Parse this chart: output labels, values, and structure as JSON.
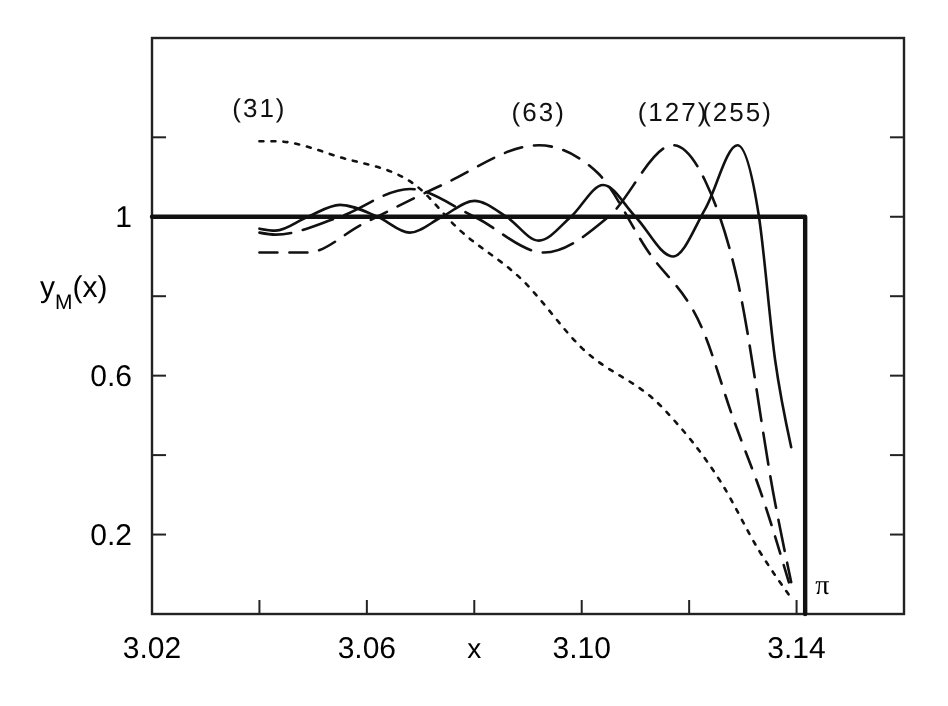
{
  "chart_data": {
    "type": "line",
    "xlabel": "x",
    "ylabel": "y$_{M}$(x)",
    "xlim": [
      3.02,
      3.16
    ],
    "ylim": [
      0,
      1.45
    ],
    "xticks": [
      3.02,
      {
        "value": 3.04,
        "label": null
      },
      3.06,
      {
        "value": 3.08,
        "label": null
      },
      "3.10",
      3.14,
      {
        "value": 3.12,
        "label": null
      }
    ],
    "yticks": [
      {
        "value": 0.2,
        "label": "0.2"
      },
      {
        "value": 0.4,
        "label": null
      },
      {
        "value": 0.6,
        "label": "0.6"
      },
      {
        "value": 0.8,
        "label": null
      },
      {
        "value": 1,
        "label": "1"
      },
      {
        "value": 1.2,
        "label": null
      }
    ],
    "grid": false,
    "marker": "none",
    "annotations": [
      {
        "text": "π",
        "x": 3.1416,
        "y": 0.05
      }
    ],
    "series": [
      {
        "color": "#111111",
        "line_style": "solid",
        "x": [
          3.02,
          3.1416,
          3.1416
        ],
        "values": [
          1,
          1,
          0
        ]
      },
      {
        "name": "(31)",
        "color": "#111111",
        "line_style": "dotted",
        "x": [
          3.04,
          3.043,
          3.055,
          3.069,
          3.077,
          3.089,
          3.1,
          3.115,
          3.126,
          3.133,
          3.139
        ],
        "values": [
          1.19,
          1.19,
          1.15,
          1.08,
          0.97,
          0.84,
          0.67,
          0.52,
          0.33,
          0.16,
          0.04
        ]
      },
      {
        "name": "(63)",
        "color": "#111111",
        "line_style": "dashed",
        "x": [
          3.04,
          3.049,
          3.059,
          3.074,
          3.092,
          3.103,
          3.112,
          3.123,
          3.128,
          3.134,
          3.139
        ],
        "values": [
          0.91,
          0.91,
          0.98,
          1.08,
          1.18,
          1.11,
          0.92,
          0.7,
          0.5,
          0.28,
          0.06
        ]
      },
      {
        "name": "(127)",
        "color": "#111111",
        "line_style": "longdash",
        "x": [
          3.04,
          3.043,
          3.055,
          3.068,
          3.08,
          3.093,
          3.105,
          3.117,
          3.123,
          3.129,
          3.136,
          3.139
        ],
        "values": [
          0.96,
          0.955,
          1.0,
          1.07,
          1.0,
          0.91,
          1.0,
          1.18,
          1.09,
          0.84,
          0.28,
          0.08
        ]
      },
      {
        "name": "(255)",
        "color": "#111111",
        "line_style": "solid",
        "x": [
          3.04,
          3.043,
          3.049,
          3.055,
          3.062,
          3.068,
          3.074,
          3.08,
          3.086,
          3.092,
          3.098,
          3.104,
          3.11,
          3.117,
          3.123,
          3.129,
          3.133,
          3.136,
          3.139
        ],
        "values": [
          0.97,
          0.965,
          1.0,
          1.03,
          1.0,
          0.96,
          1.0,
          1.04,
          1.0,
          0.94,
          1.0,
          1.08,
          1.0,
          0.9,
          1.02,
          1.18,
          1.0,
          0.64,
          0.42
        ]
      }
    ]
  }
}
